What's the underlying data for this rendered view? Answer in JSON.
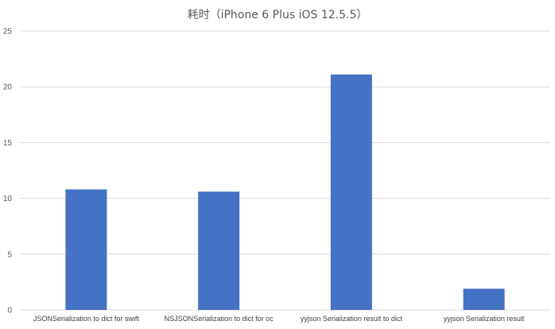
{
  "chart_data": {
    "type": "bar",
    "title": "耗时（iPhone 6 Plus iOS 12.5.5）",
    "categories": [
      "JSONSerialization to dict for swift",
      "NSJSONSerialization to dict for oc",
      "yyjson Serialization result to dict",
      "yyjson Serialization result"
    ],
    "values": [
      10.8,
      10.6,
      21.1,
      1.9
    ],
    "ylim": [
      0,
      25
    ],
    "yticks": [
      0,
      5,
      10,
      15,
      20,
      25
    ],
    "grid": true,
    "legend": "none",
    "bar_color": "#4472C4",
    "grid_color": "#D9D9D9"
  }
}
